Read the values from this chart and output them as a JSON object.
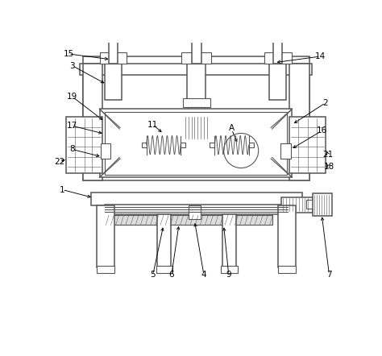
{
  "bg_color": "#ffffff",
  "line_color": "#555555",
  "label_color": "#000000",
  "label_fontsize": 7.5,
  "leader_linewidth": 0.65,
  "draw_linewidth": 1.1
}
